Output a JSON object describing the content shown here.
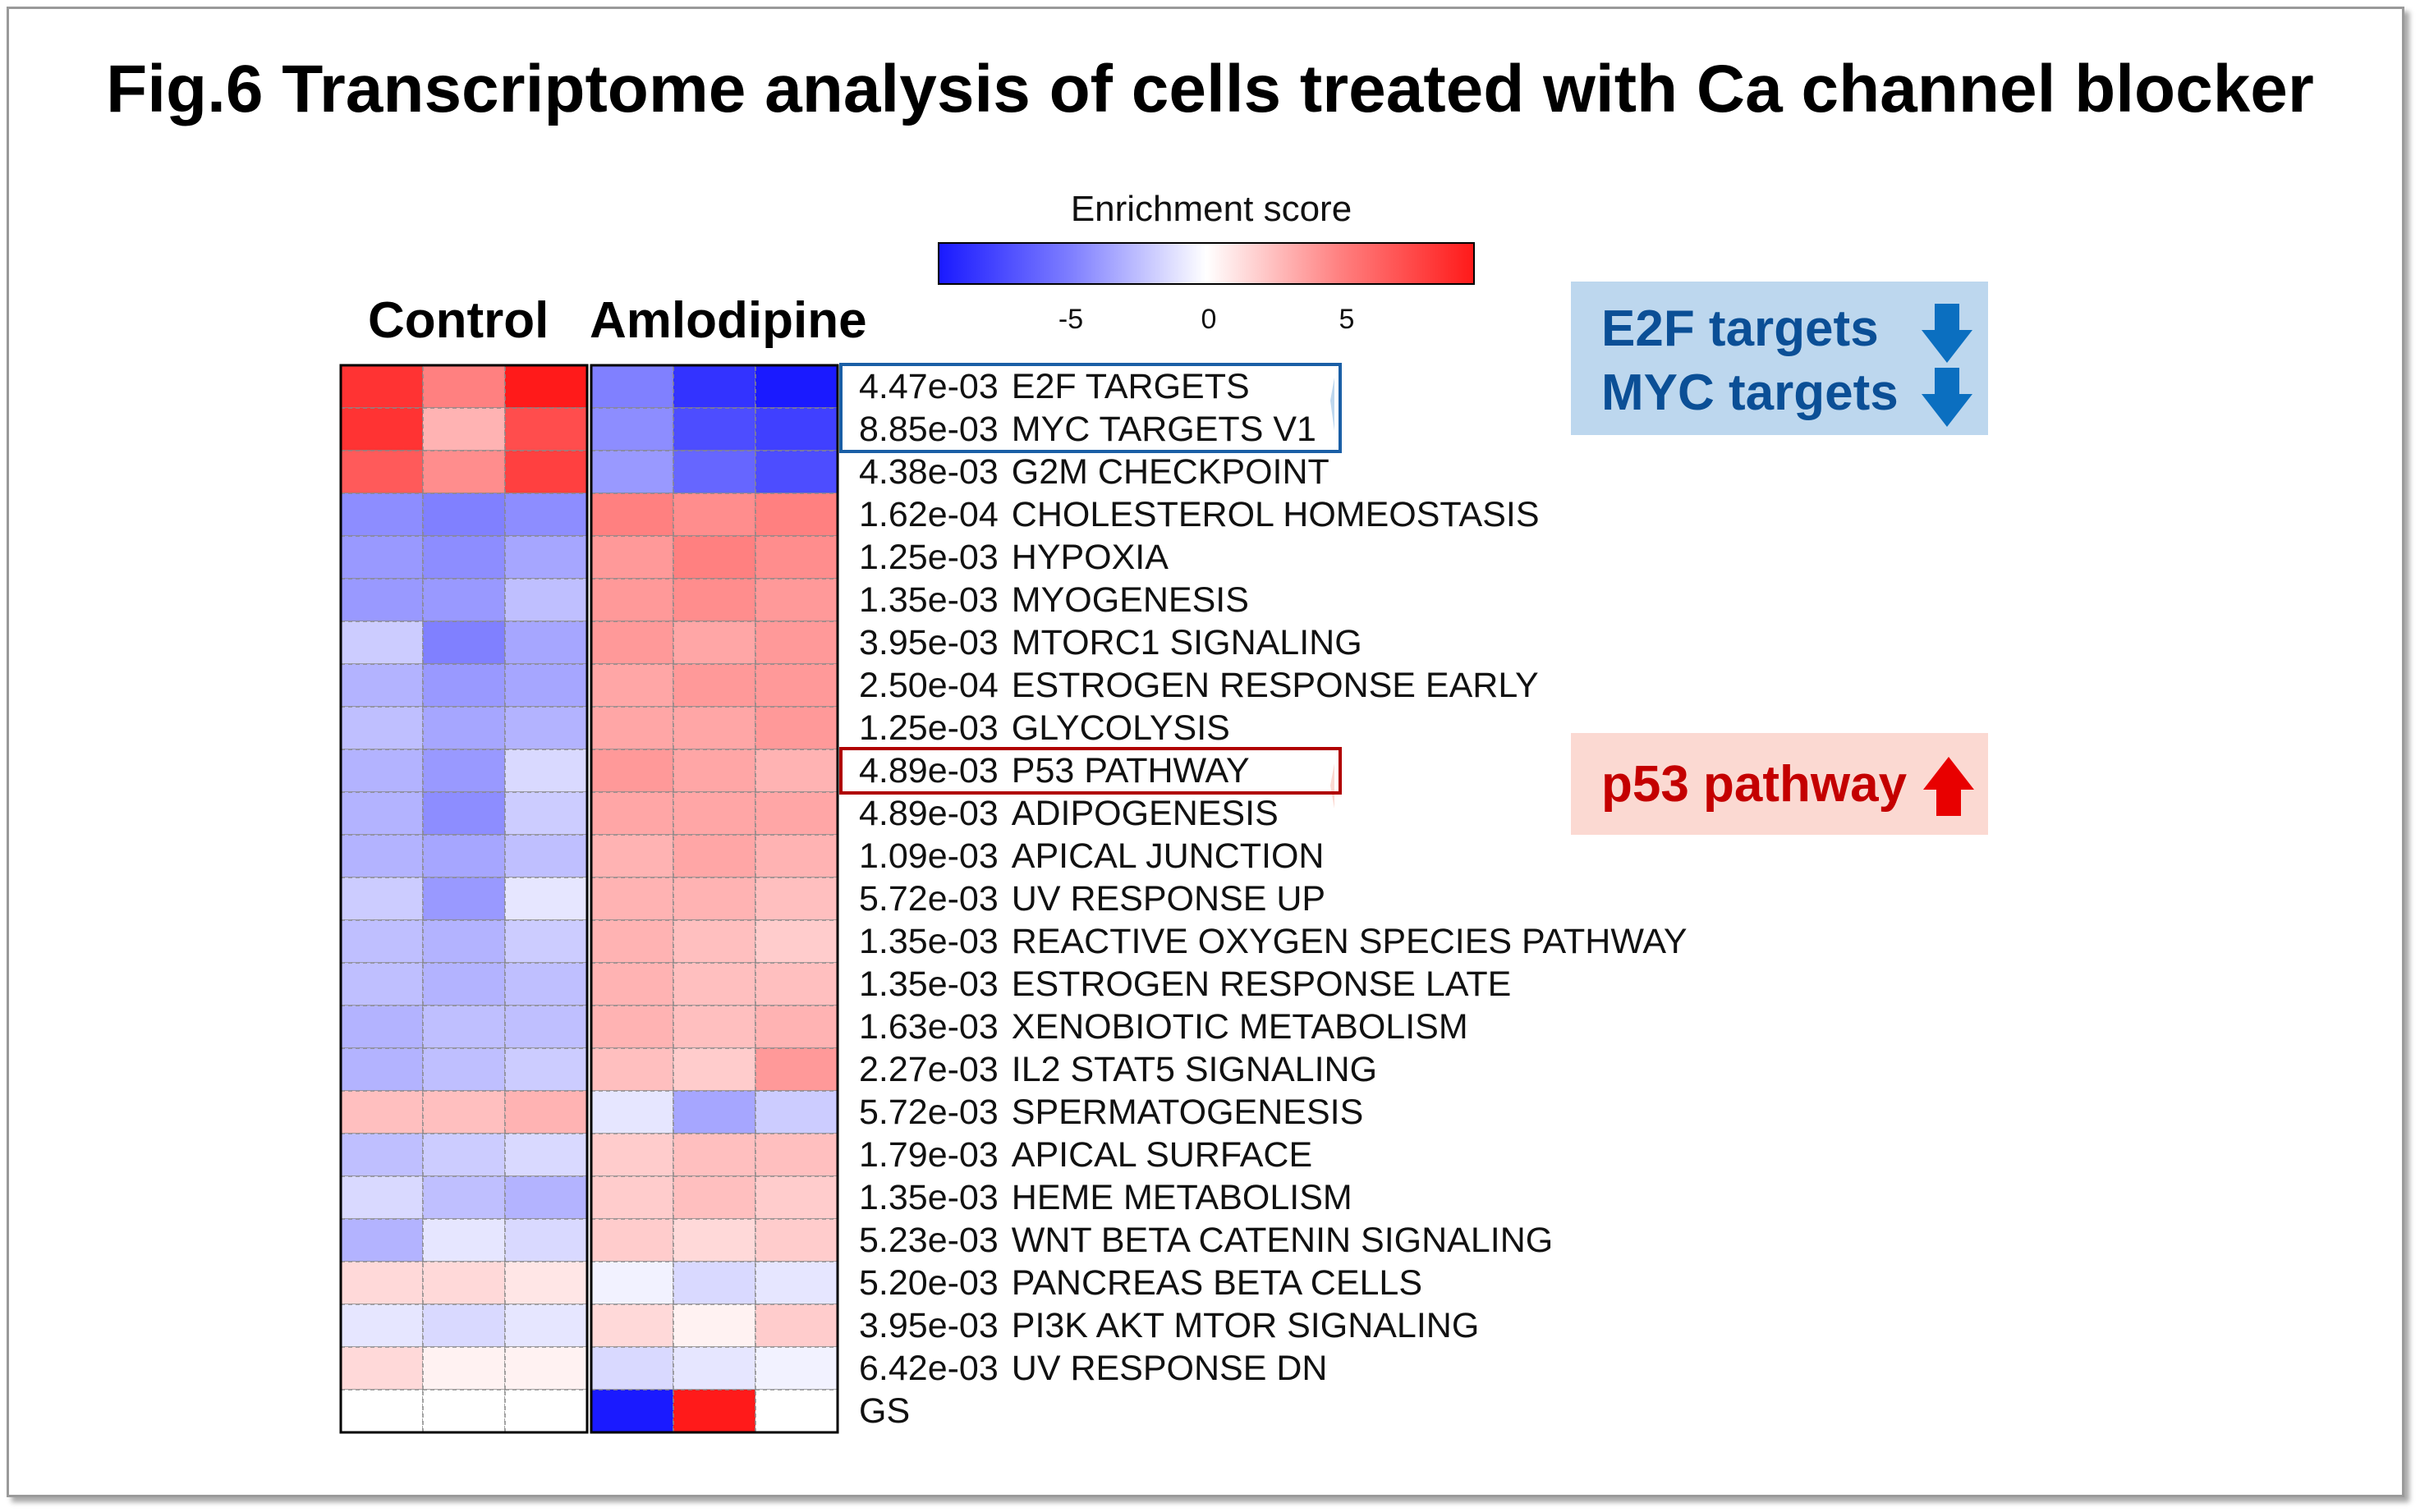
{
  "title": "Fig.6 Transcriptome analysis of cells treated with Ca channel blocker",
  "colorbar": {
    "label": "Enrichment score",
    "ticks": [
      "-5",
      "0",
      "5"
    ],
    "range": [
      -9,
      9
    ]
  },
  "groups": [
    "Control",
    "Amlodipine"
  ],
  "callouts": {
    "down": {
      "lines": [
        "E2F targets",
        "MYC targets"
      ],
      "color": "#0b6fc0",
      "background": "#bdd7ee",
      "arrow": "arrow-down-icon"
    },
    "up": {
      "lines": [
        "p53 pathway"
      ],
      "color": "#d90000",
      "background": "#fbd9d2",
      "arrow": "arrow-up-icon"
    }
  },
  "chart_data": {
    "type": "heatmap",
    "title": "",
    "colorbar_label": "Enrichment score",
    "columns": [
      "Control 1",
      "Control 2",
      "Control 3",
      "Amlodipine 1",
      "Amlodipine 2",
      "Amlodipine 3"
    ],
    "rows": [
      {
        "pvalue": "4.47e-03",
        "name": "E2F TARGETS",
        "values": [
          8,
          5,
          9,
          -5,
          -8,
          -9
        ]
      },
      {
        "pvalue": "8.85e-03",
        "name": "MYC TARGETS V1",
        "values": [
          8,
          3,
          7,
          -4.5,
          -7,
          -7.5
        ]
      },
      {
        "pvalue": "4.38e-03",
        "name": "G2M CHECKPOINT",
        "values": [
          6.5,
          4.5,
          7.5,
          -4,
          -6,
          -7
        ]
      },
      {
        "pvalue": "1.62e-04",
        "name": "CHOLESTEROL HOMEOSTASIS",
        "values": [
          -4.5,
          -5,
          -4.5,
          5,
          4.5,
          5
        ]
      },
      {
        "pvalue": "1.25e-03",
        "name": "HYPOXIA",
        "values": [
          -4,
          -4.5,
          -3.5,
          4,
          5,
          4.5
        ]
      },
      {
        "pvalue": "1.35e-03",
        "name": "MYOGENESIS",
        "values": [
          -4,
          -4,
          -2.5,
          4,
          4.5,
          4
        ]
      },
      {
        "pvalue": "3.95e-03",
        "name": "MTORC1 SIGNALING",
        "values": [
          -2,
          -5,
          -3.5,
          4,
          3.5,
          4
        ]
      },
      {
        "pvalue": "2.50e-04",
        "name": "ESTROGEN RESPONSE EARLY",
        "values": [
          -3,
          -4,
          -3.5,
          3.5,
          4,
          4
        ]
      },
      {
        "pvalue": "1.25e-03",
        "name": "GLYCOLYSIS",
        "values": [
          -2.5,
          -3.5,
          -3,
          3.5,
          3.5,
          4
        ]
      },
      {
        "pvalue": "4.89e-03",
        "name": "P53 PATHWAY",
        "values": [
          -3,
          -4,
          -1.5,
          4,
          3.5,
          3
        ]
      },
      {
        "pvalue": "4.89e-03",
        "name": "ADIPOGENESIS",
        "values": [
          -3,
          -4.5,
          -2,
          3.5,
          3.5,
          3.5
        ]
      },
      {
        "pvalue": "1.09e-03",
        "name": "APICAL JUNCTION",
        "values": [
          -3,
          -3.5,
          -2.5,
          3,
          3.5,
          3
        ]
      },
      {
        "pvalue": "5.72e-03",
        "name": "UV RESPONSE UP",
        "values": [
          -2,
          -4,
          -1,
          3,
          3,
          2.5
        ]
      },
      {
        "pvalue": "1.35e-03",
        "name": "REACTIVE OXYGEN SPECIES PATHWAY",
        "values": [
          -2.5,
          -3,
          -2,
          3,
          2.5,
          2
        ]
      },
      {
        "pvalue": "1.35e-03",
        "name": "ESTROGEN RESPONSE LATE",
        "values": [
          -2.5,
          -3,
          -2.5,
          3,
          2.5,
          2.5
        ]
      },
      {
        "pvalue": "1.63e-03",
        "name": "XENOBIOTIC METABOLISM",
        "values": [
          -3,
          -2.5,
          -2.5,
          3,
          2.5,
          3
        ]
      },
      {
        "pvalue": "2.27e-03",
        "name": "IL2 STAT5 SIGNALING",
        "values": [
          -3,
          -2.5,
          -2,
          2.5,
          2,
          4
        ]
      },
      {
        "pvalue": "5.72e-03",
        "name": "SPERMATOGENESIS",
        "values": [
          2.5,
          2.5,
          3,
          -1,
          -3.5,
          -2
        ]
      },
      {
        "pvalue": "1.79e-03",
        "name": "APICAL SURFACE",
        "values": [
          -2.5,
          -2,
          -1.5,
          2,
          2.5,
          2.5
        ]
      },
      {
        "pvalue": "1.35e-03",
        "name": "HEME METABOLISM",
        "values": [
          -1.5,
          -2.5,
          -3,
          2,
          2.5,
          2
        ]
      },
      {
        "pvalue": "5.23e-03",
        "name": "WNT BETA CATENIN SIGNALING",
        "values": [
          -3,
          -1,
          -1.5,
          2,
          1.5,
          2
        ]
      },
      {
        "pvalue": "5.20e-03",
        "name": "PANCREAS BETA CELLS",
        "values": [
          1.5,
          1.5,
          1,
          -0.5,
          -1.5,
          -1
        ]
      },
      {
        "pvalue": "3.95e-03",
        "name": "PI3K AKT MTOR SIGNALING",
        "values": [
          -1,
          -1.5,
          -1,
          1.5,
          0.5,
          2
        ]
      },
      {
        "pvalue": "6.42e-03",
        "name": "UV RESPONSE DN",
        "values": [
          1.5,
          0.5,
          0.5,
          -1.5,
          -1,
          -0.5
        ]
      },
      {
        "pvalue": "",
        "name": "GS",
        "values": [
          0,
          0,
          0,
          -9,
          9,
          0
        ]
      }
    ],
    "highlight_boxes": [
      {
        "rows": [
          "E2F TARGETS",
          "MYC TARGETS V1"
        ],
        "color": "#1a5fa6"
      },
      {
        "rows": [
          "P53 PATHWAY"
        ],
        "color": "#b00000"
      }
    ]
  }
}
